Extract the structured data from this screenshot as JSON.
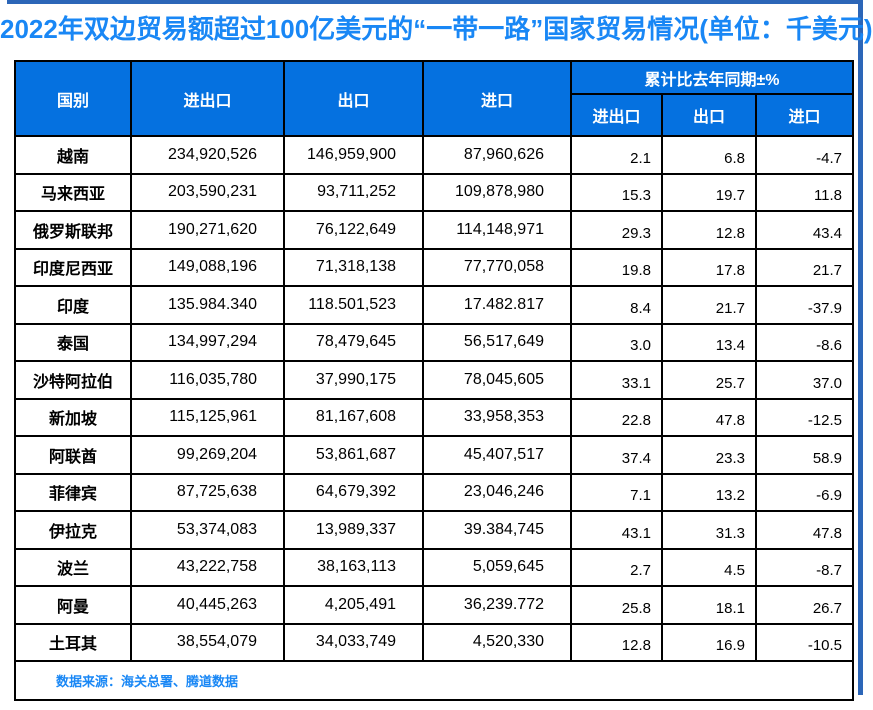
{
  "title": "2022年双边贸易额超过100亿美元的“一带一路”国家贸易情况(单位：千美元)",
  "colors": {
    "header_bg": "#0571E0",
    "title_text": "#1987F5",
    "source_text": "#1987F5",
    "frame_edge": "#2C66B8",
    "grid_border": "#000000"
  },
  "header": {
    "country": "国别",
    "total": "进出口",
    "export": "出口",
    "import": "进口",
    "yoy_group": "累计比去年同期±%",
    "yoy_total": "进出口",
    "yoy_export": "出口",
    "yoy_import": "进口"
  },
  "rows": [
    {
      "country": "越南",
      "total": "234,920,526",
      "export": "146,959,900",
      "import": "87,960,626",
      "yoy_total": "2.1",
      "yoy_export": "6.8",
      "yoy_import": "-4.7"
    },
    {
      "country": "马来西亚",
      "total": "203,590,231",
      "export": "93,711,252",
      "import": "109,878,980",
      "yoy_total": "15.3",
      "yoy_export": "19.7",
      "yoy_import": "11.8"
    },
    {
      "country": "俄罗斯联邦",
      "total": "190,271,620",
      "export": "76,122,649",
      "import": "114,148,971",
      "yoy_total": "29.3",
      "yoy_export": "12.8",
      "yoy_import": "43.4"
    },
    {
      "country": "印度尼西亚",
      "total": "149,088,196",
      "export": "71,318,138",
      "import": "77,770,058",
      "yoy_total": "19.8",
      "yoy_export": "17.8",
      "yoy_import": "21.7"
    },
    {
      "country": "印度",
      "total": "135.984.340",
      "export": "118.501,523",
      "import": "17.482.817",
      "yoy_total": "8.4",
      "yoy_export": "21.7",
      "yoy_import": "-37.9"
    },
    {
      "country": "泰国",
      "total": "134,997,294",
      "export": "78,479,645",
      "import": "56,517,649",
      "yoy_total": "3.0",
      "yoy_export": "13.4",
      "yoy_import": "-8.6"
    },
    {
      "country": "沙特阿拉伯",
      "total": "116,035,780",
      "export": "37,990,175",
      "import": "78,045,605",
      "yoy_total": "33.1",
      "yoy_export": "25.7",
      "yoy_import": "37.0"
    },
    {
      "country": "新加坡",
      "total": "115,125,961",
      "export": "81,167,608",
      "import": "33,958,353",
      "yoy_total": "22.8",
      "yoy_export": "47.8",
      "yoy_import": "-12.5"
    },
    {
      "country": "阿联酋",
      "total": "99,269,204",
      "export": "53,861,687",
      "import": "45,407,517",
      "yoy_total": "37.4",
      "yoy_export": "23.3",
      "yoy_import": "58.9"
    },
    {
      "country": "菲律宾",
      "total": "87,725,638",
      "export": "64,679,392",
      "import": "23,046,246",
      "yoy_total": "7.1",
      "yoy_export": "13.2",
      "yoy_import": "-6.9"
    },
    {
      "country": "伊拉克",
      "total": "53,374,083",
      "export": "13,989,337",
      "import": "39.384,745",
      "yoy_total": "43.1",
      "yoy_export": "31.3",
      "yoy_import": "47.8"
    },
    {
      "country": "波兰",
      "total": "43,222,758",
      "export": "38,163,113",
      "import": "5,059,645",
      "yoy_total": "2.7",
      "yoy_export": "4.5",
      "yoy_import": "-8.7"
    },
    {
      "country": "阿曼",
      "total": "40,445,263",
      "export": "4,205,491",
      "import": "36,239.772",
      "yoy_total": "25.8",
      "yoy_export": "18.1",
      "yoy_import": "26.7"
    },
    {
      "country": "土耳其",
      "total": "38,554,079",
      "export": "34,033,749",
      "import": "4,520,330",
      "yoy_total": "12.8",
      "yoy_export": "16.9",
      "yoy_import": "-10.5"
    }
  ],
  "footer": {
    "source": "数据来源：海关总署、腾道数据"
  },
  "chart_data": {
    "type": "table",
    "title": "2022年双边贸易额超过100亿美元的“一带一路”国家贸易情况(单位：千美元)",
    "columns": [
      "国别",
      "进出口",
      "出口",
      "进口",
      "累计比去年同期±% 进出口",
      "累计比去年同期±% 出口",
      "累计比去年同期±% 进口"
    ],
    "rows": [
      [
        "越南",
        "234,920,526",
        "146,959,900",
        "87,960,626",
        "2.1",
        "6.8",
        "-4.7"
      ],
      [
        "马来西亚",
        "203,590,231",
        "93,711,252",
        "109,878,980",
        "15.3",
        "19.7",
        "11.8"
      ],
      [
        "俄罗斯联邦",
        "190,271,620",
        "76,122,649",
        "114,148,971",
        "29.3",
        "12.8",
        "43.4"
      ],
      [
        "印度尼西亚",
        "149,088,196",
        "71,318,138",
        "77,770,058",
        "19.8",
        "17.8",
        "21.7"
      ],
      [
        "印度",
        "135.984.340",
        "118.501,523",
        "17.482.817",
        "8.4",
        "21.7",
        "-37.9"
      ],
      [
        "泰国",
        "134,997,294",
        "78,479,645",
        "56,517,649",
        "3.0",
        "13.4",
        "-8.6"
      ],
      [
        "沙特阿拉伯",
        "116,035,780",
        "37,990,175",
        "78,045,605",
        "33.1",
        "25.7",
        "37.0"
      ],
      [
        "新加坡",
        "115,125,961",
        "81,167,608",
        "33,958,353",
        "22.8",
        "47.8",
        "-12.5"
      ],
      [
        "阿联酋",
        "99,269,204",
        "53,861,687",
        "45,407,517",
        "37.4",
        "23.3",
        "58.9"
      ],
      [
        "菲律宾",
        "87,725,638",
        "64,679,392",
        "23,046,246",
        "7.1",
        "13.2",
        "-6.9"
      ],
      [
        "伊拉克",
        "53,374,083",
        "13,989,337",
        "39.384,745",
        "43.1",
        "31.3",
        "47.8"
      ],
      [
        "波兰",
        "43,222,758",
        "38,163,113",
        "5,059,645",
        "2.7",
        "4.5",
        "-8.7"
      ],
      [
        "阿曼",
        "40,445,263",
        "4,205,491",
        "36,239.772",
        "25.8",
        "18.1",
        "26.7"
      ],
      [
        "土耳其",
        "38,554,079",
        "34,033,749",
        "4,520,330",
        "12.8",
        "16.9",
        "-10.5"
      ]
    ],
    "source_note": "数据来源：海关总署、腾道数据"
  }
}
